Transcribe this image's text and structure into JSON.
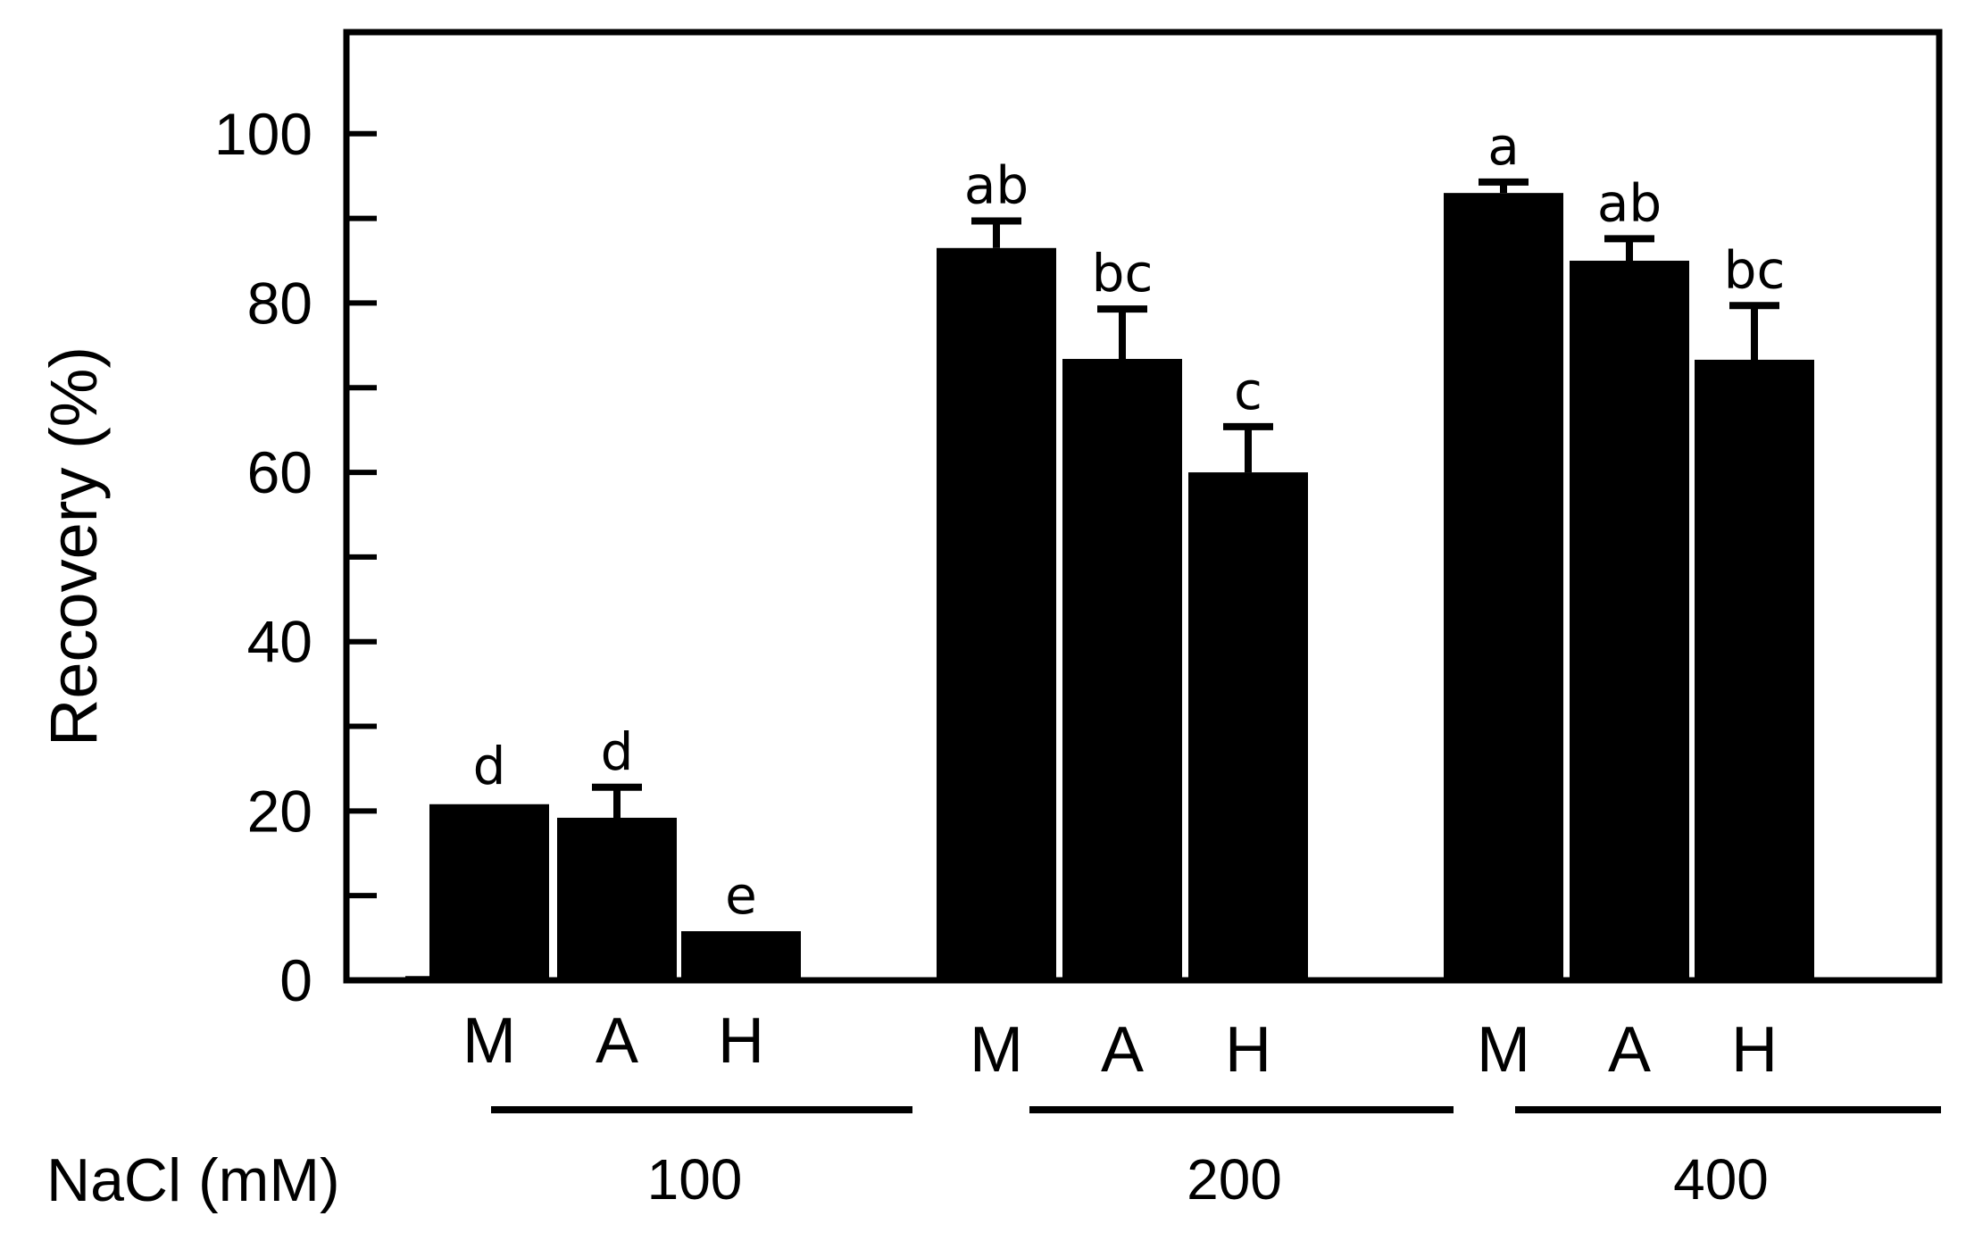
{
  "chart_data": {
    "type": "bar",
    "title": "",
    "ylabel": "Recovery (%)",
    "xlabel": "NaCl (mM)",
    "ylim": [
      0,
      112
    ],
    "yticks": [
      0,
      20,
      40,
      60,
      80,
      100
    ],
    "grid": false,
    "groups": [
      "100",
      "200",
      "400"
    ],
    "control": {
      "value": 0.5,
      "error": 0
    },
    "bars": [
      {
        "group": "100",
        "label": "M",
        "value": 20.8,
        "error": 0.3,
        "sig": "d"
      },
      {
        "group": "100",
        "label": "A",
        "value": 19.2,
        "error": 3.6,
        "sig": "d"
      },
      {
        "group": "100",
        "label": "H",
        "value": 5.8,
        "error": 0.0,
        "sig": "e"
      },
      {
        "group": "200",
        "label": "M",
        "value": 86.5,
        "error": 3.2,
        "sig": "ab"
      },
      {
        "group": "200",
        "label": "A",
        "value": 73.4,
        "error": 5.9,
        "sig": "bc"
      },
      {
        "group": "200",
        "label": "H",
        "value": 60.0,
        "error": 5.4,
        "sig": "c"
      },
      {
        "group": "400",
        "label": "M",
        "value": 93.0,
        "error": 1.3,
        "sig": "a"
      },
      {
        "group": "400",
        "label": "A",
        "value": 85.0,
        "error": 2.6,
        "sig": "ab"
      },
      {
        "group": "400",
        "label": "H",
        "value": 73.3,
        "error": 6.4,
        "sig": "bc"
      }
    ],
    "colors": {
      "bar": "#000000",
      "axis": "#000000"
    }
  }
}
